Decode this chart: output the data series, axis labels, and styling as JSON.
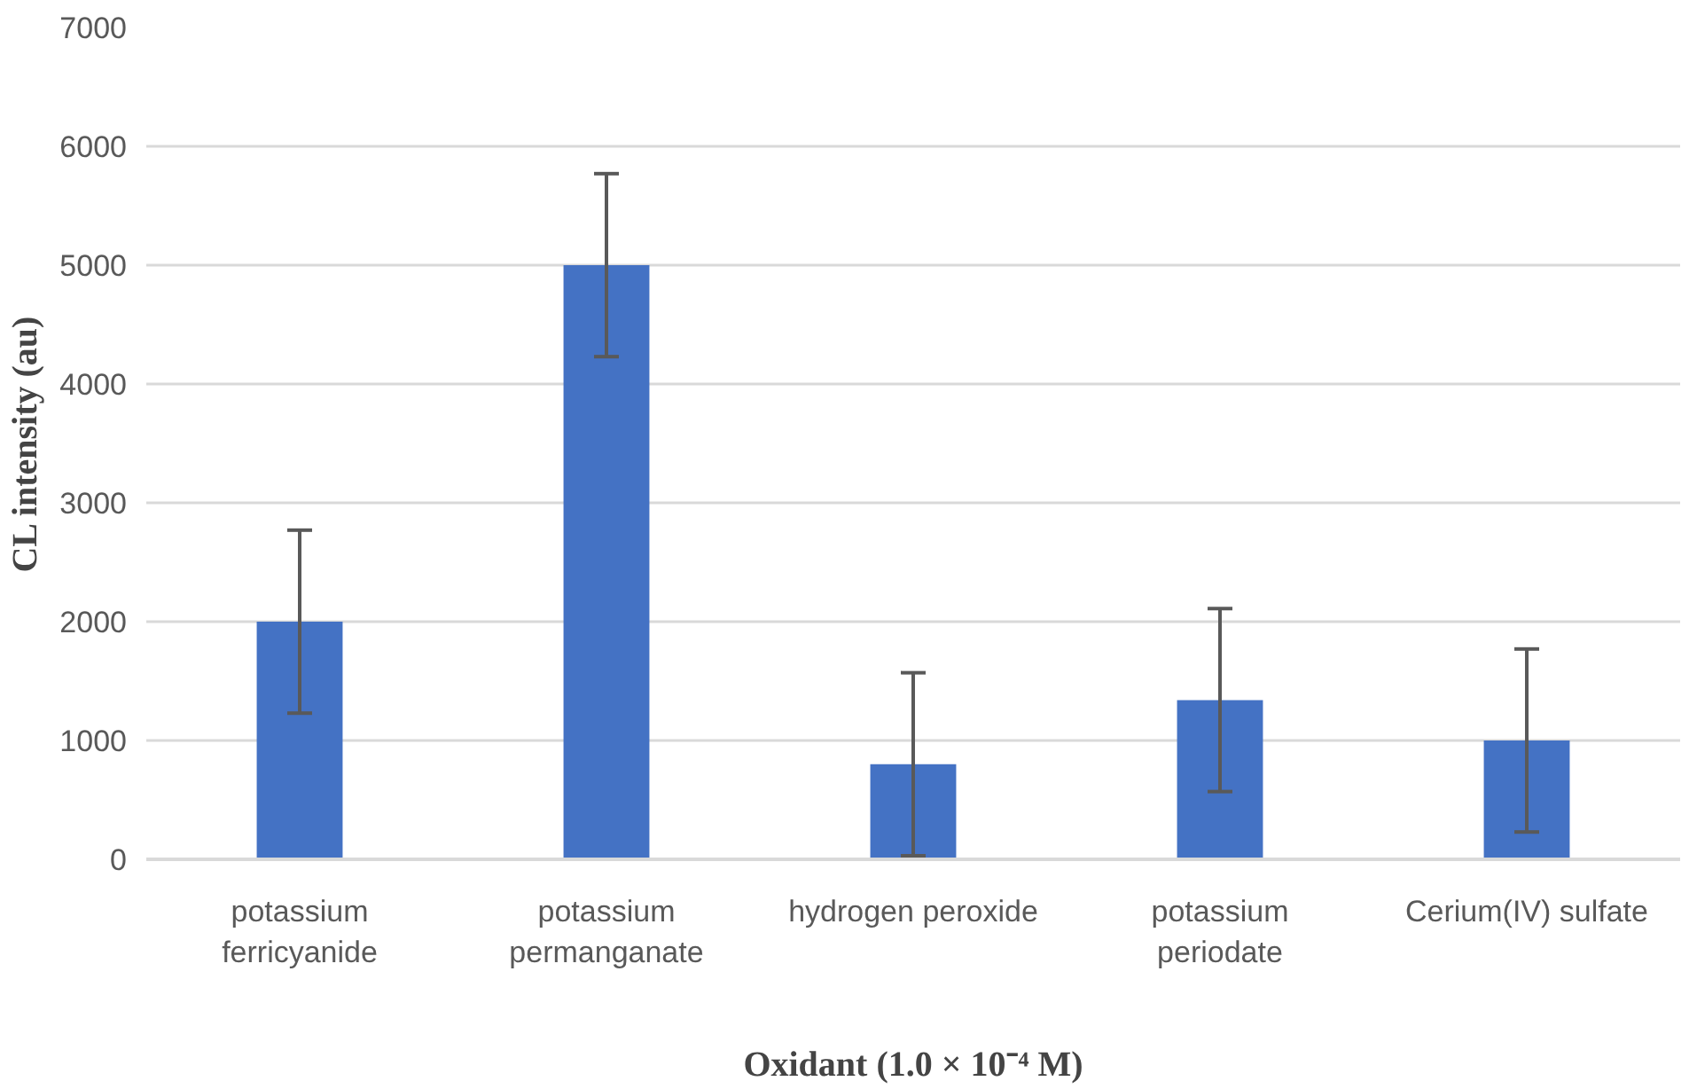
{
  "chart_data": {
    "type": "bar",
    "xlabel": "Oxidant (1.0 × 10⁻⁴ M)",
    "ylabel": "CL intensity (au)",
    "categories": [
      "potassium ferricyanide",
      "potassium permanganate",
      "hydrogen peroxide",
      "potassium periodate",
      "Cerium(IV) sulfate"
    ],
    "values": [
      2000,
      5000,
      800,
      1340,
      1000
    ],
    "errors": [
      770,
      770,
      770,
      770,
      770
    ],
    "color": "#4472c4",
    "ylim": [
      0,
      7000
    ],
    "yticks": [
      0,
      1000,
      2000,
      3000,
      4000,
      5000,
      6000,
      7000
    ],
    "grid": "y"
  }
}
